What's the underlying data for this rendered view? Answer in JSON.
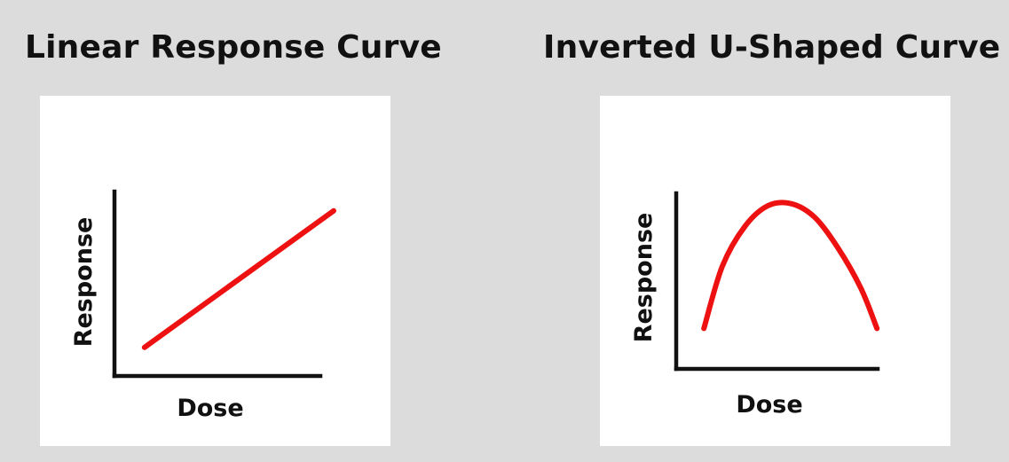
{
  "colors": {
    "background": "#dcdcdc",
    "panel": "#ffffff",
    "axis": "#111111",
    "curve": "#ee1111"
  },
  "chart_data": [
    {
      "type": "line",
      "title": "Linear Response Curve",
      "xlabel": "Dose",
      "ylabel": "Response",
      "x": [
        0.13,
        0.95
      ],
      "series": [
        {
          "values": [
            0.14,
            0.81
          ]
        }
      ],
      "xlim": [
        0,
        1
      ],
      "ylim": [
        0,
        1
      ],
      "ticks": false,
      "grid": false,
      "legend": "none"
    },
    {
      "type": "line",
      "title": "Inverted U-Shaped Curve",
      "xlabel": "Dose",
      "ylabel": "Response",
      "x": [
        0.12,
        0.2,
        0.3,
        0.4,
        0.5,
        0.6,
        0.7,
        0.8,
        0.87
      ],
      "series": [
        {
          "values": [
            0.24,
            0.61,
            0.85,
            0.97,
            0.98,
            0.9,
            0.72,
            0.48,
            0.24
          ]
        }
      ],
      "xlim": [
        0,
        1
      ],
      "ylim": [
        0,
        1
      ],
      "ticks": false,
      "grid": false,
      "legend": "none"
    }
  ]
}
